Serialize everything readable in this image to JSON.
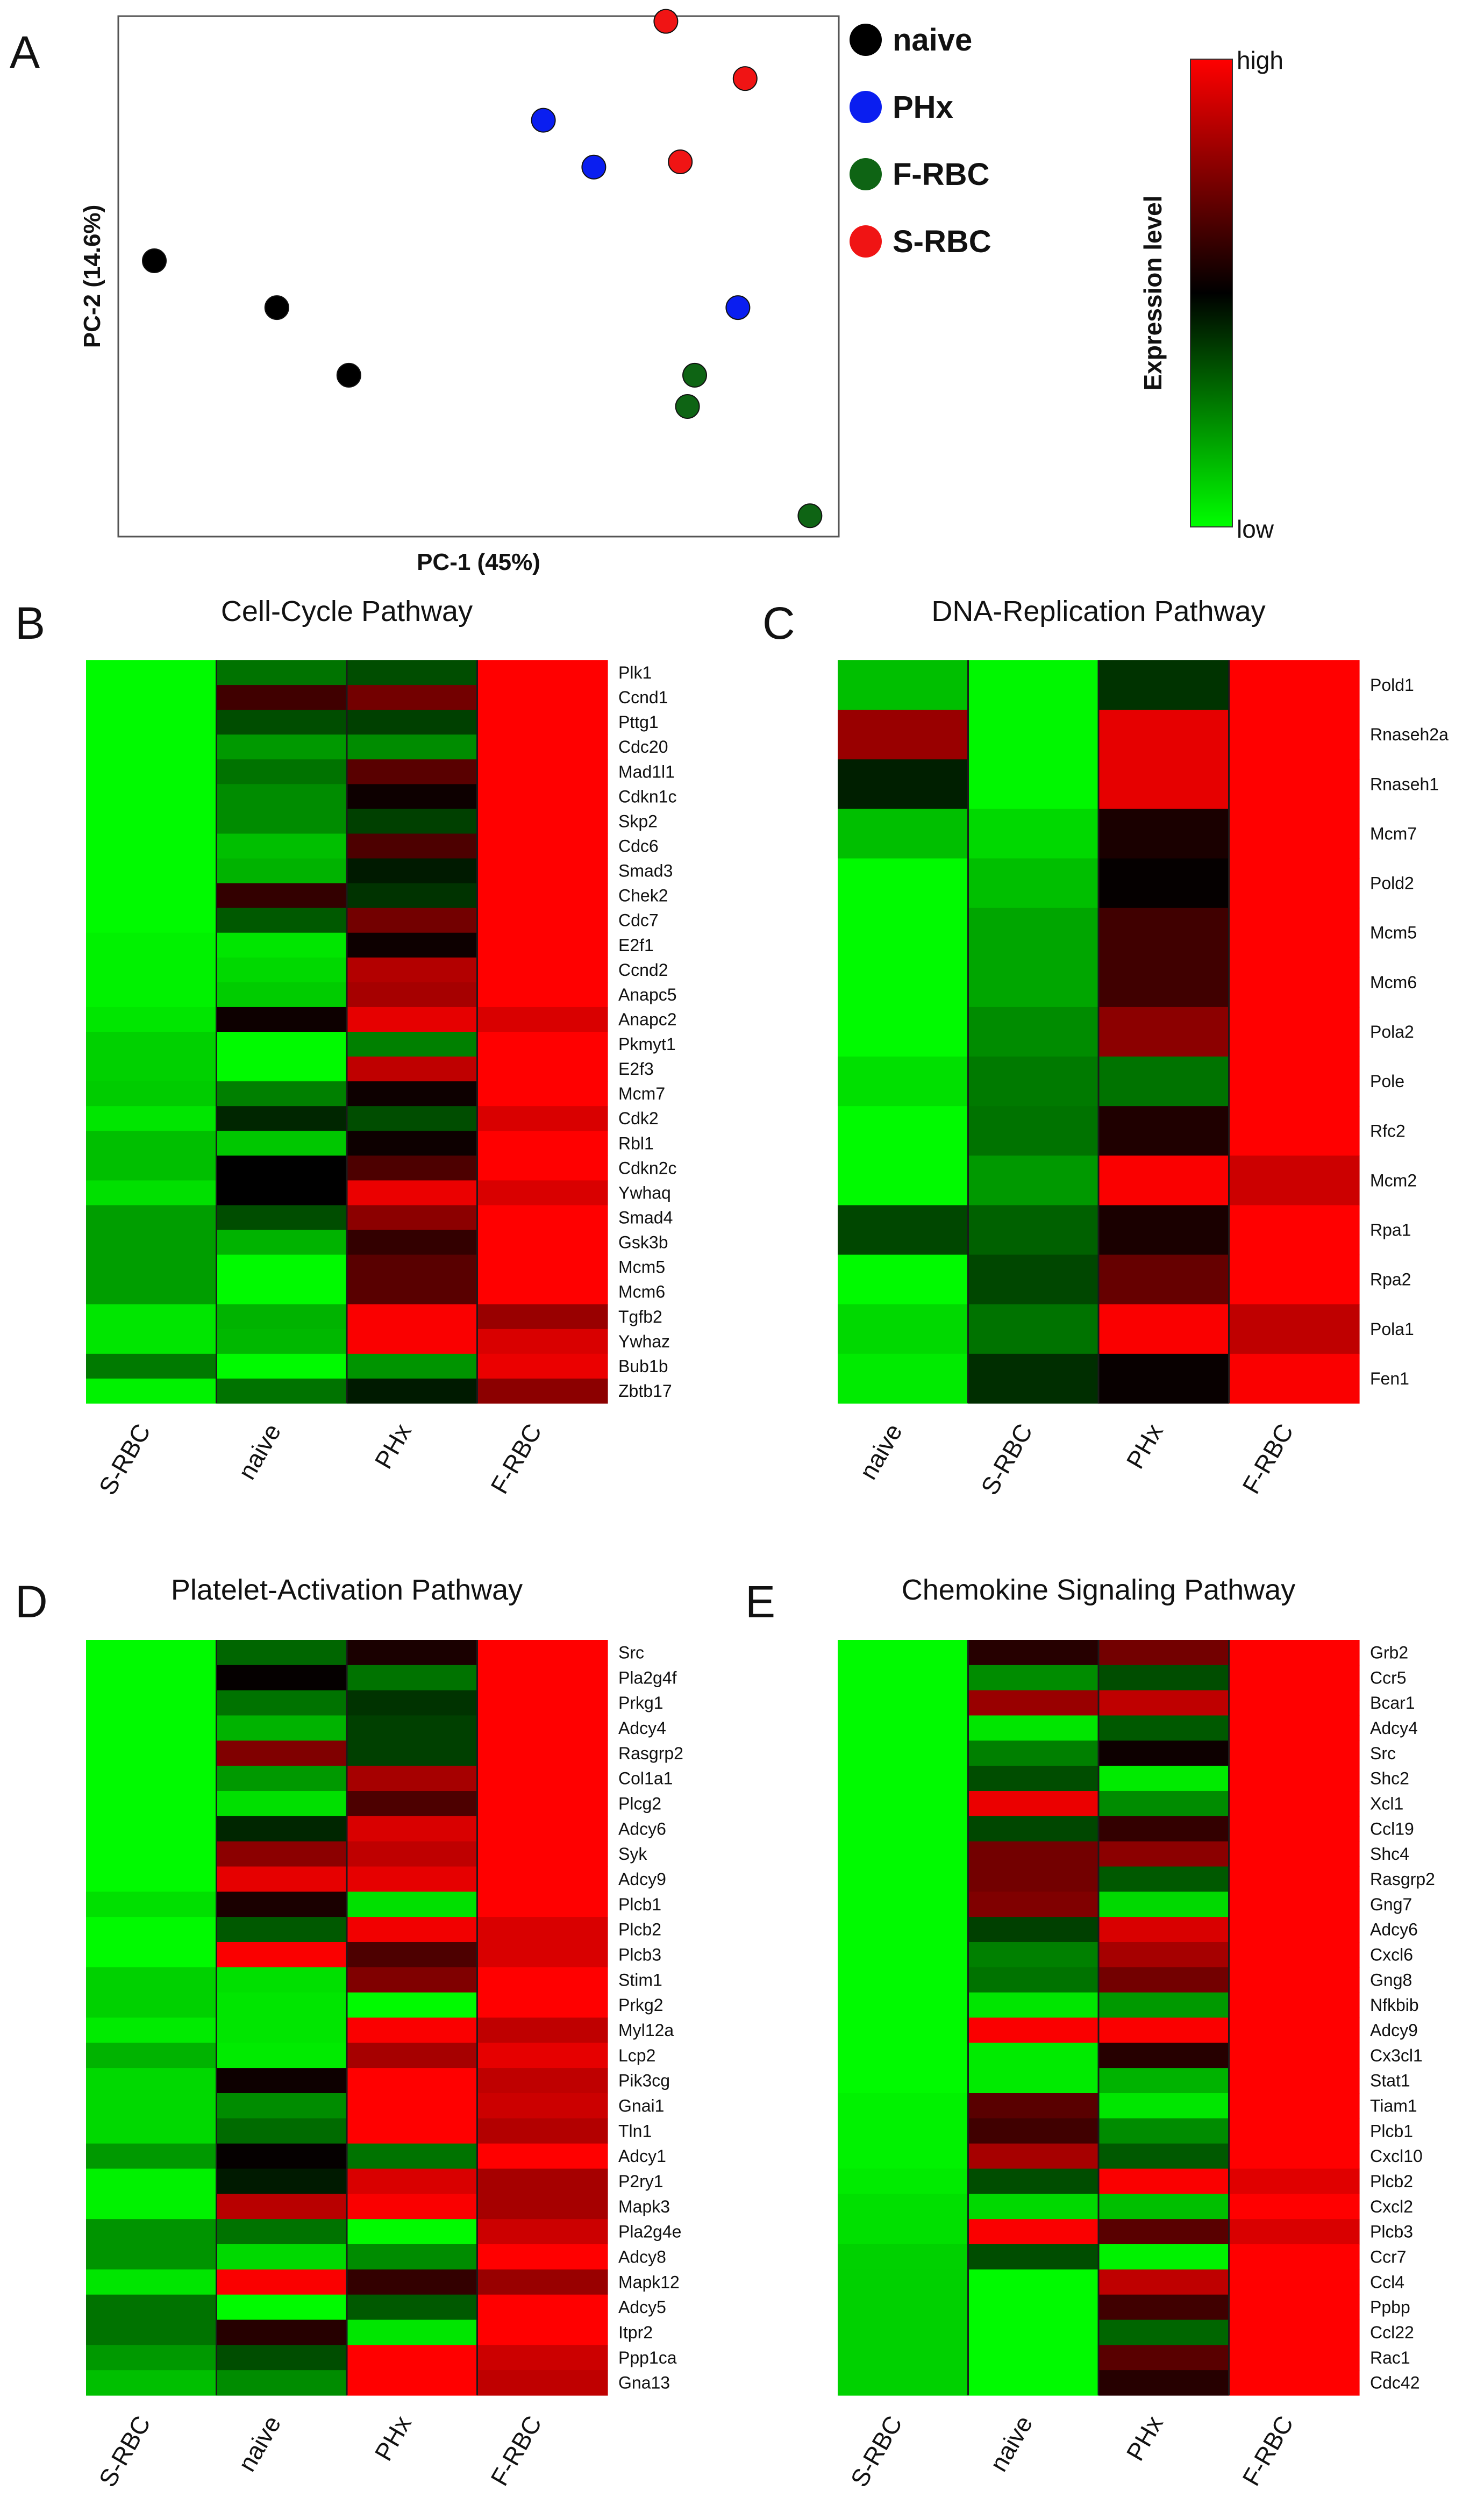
{
  "figure": {
    "pca": {
      "letter": "A",
      "xlabel": "PC-1 (45%)",
      "ylabel": "PC-2 (14.6%)",
      "legend": [
        {
          "label": "naive",
          "color": "#000000"
        },
        {
          "label": "PHx",
          "color": "#0a1ef0"
        },
        {
          "label": "F-RBC",
          "color": "#0e6414"
        },
        {
          "label": "S-RBC",
          "color": "#f01414"
        }
      ]
    },
    "colorbar": {
      "title": "Expression  level",
      "high_label": "high",
      "low_label": "low",
      "high_color": "#ff0000",
      "mid_color": "#000000",
      "low_color": "#00ff00"
    }
  },
  "chart_data": [
    {
      "type": "scatter",
      "panel": "A",
      "xlabel": "PC-1 (45%)",
      "ylabel": "PC-2 (14.6%)",
      "xlim": [
        0,
        100
      ],
      "ylim": [
        0,
        100
      ],
      "points": [
        {
          "group": "naive",
          "x": 5,
          "y": 53
        },
        {
          "group": "naive",
          "x": 22,
          "y": 44
        },
        {
          "group": "naive",
          "x": 32,
          "y": 31
        },
        {
          "group": "PHx",
          "x": 59,
          "y": 80
        },
        {
          "group": "PHx",
          "x": 66,
          "y": 71
        },
        {
          "group": "PHx",
          "x": 86,
          "y": 44
        },
        {
          "group": "F-RBC",
          "x": 80,
          "y": 31
        },
        {
          "group": "F-RBC",
          "x": 79,
          "y": 25
        },
        {
          "group": "F-RBC",
          "x": 96,
          "y": 4
        },
        {
          "group": "S-RBC",
          "x": 76,
          "y": 99
        },
        {
          "group": "S-RBC",
          "x": 87,
          "y": 88
        },
        {
          "group": "S-RBC",
          "x": 78,
          "y": 72
        }
      ]
    },
    {
      "type": "heatmap",
      "panel": "B",
      "title": "Cell-Cycle Pathway",
      "columns": [
        "S-RBC",
        "naive",
        "PHx",
        "F-RBC"
      ],
      "genes": [
        "Plk1",
        "Ccnd1",
        "Pttg1",
        "Cdc20",
        "Mad1l1",
        "Cdkn1c",
        "Skp2",
        "Cdc6",
        "Smad3",
        "Chek2",
        "Cdc7",
        "E2f1",
        "Ccnd2",
        "Anapc5",
        "Anapc2",
        "Pkmyt1",
        "E2f3",
        "Mcm7",
        "Cdk2",
        "Rbl1",
        "Cdkn2c",
        "Ywhaq",
        "Smad4",
        "Gsk3b",
        "Mcm5",
        "Mcm6",
        "Tgfb2",
        "Ywhaz",
        "Bub1b",
        "Zbtb17"
      ],
      "values": [
        [
          -0.98,
          -0.45,
          -0.3,
          1.0
        ],
        [
          -0.98,
          0.25,
          0.45,
          1.0
        ],
        [
          -0.98,
          -0.3,
          -0.25,
          1.0
        ],
        [
          -0.98,
          -0.6,
          -0.55,
          1.0
        ],
        [
          -0.98,
          -0.45,
          0.35,
          1.0
        ],
        [
          -0.98,
          -0.55,
          0.05,
          1.0
        ],
        [
          -0.98,
          -0.55,
          -0.25,
          1.0
        ],
        [
          -0.98,
          -0.75,
          0.3,
          1.0
        ],
        [
          -0.98,
          -0.7,
          -0.1,
          1.0
        ],
        [
          -0.98,
          0.2,
          -0.2,
          1.0
        ],
        [
          -0.98,
          -0.35,
          0.45,
          1.0
        ],
        [
          -0.95,
          -0.9,
          0.05,
          1.0
        ],
        [
          -0.95,
          -0.85,
          0.7,
          1.0
        ],
        [
          -0.95,
          -0.8,
          0.65,
          1.0
        ],
        [
          -0.9,
          0.05,
          0.9,
          0.85
        ],
        [
          -0.82,
          -0.98,
          -0.5,
          1.0
        ],
        [
          -0.82,
          -0.98,
          0.75,
          1.0
        ],
        [
          -0.8,
          -0.5,
          0.05,
          1.0
        ],
        [
          -0.9,
          -0.15,
          -0.3,
          0.85
        ],
        [
          -0.75,
          -0.78,
          0.05,
          1.0
        ],
        [
          -0.75,
          0.0,
          0.3,
          1.0
        ],
        [
          -0.88,
          0.0,
          0.92,
          0.85
        ],
        [
          -0.62,
          -0.3,
          0.55,
          1.0
        ],
        [
          -0.62,
          -0.7,
          0.2,
          1.0
        ],
        [
          -0.62,
          -0.98,
          0.35,
          1.0
        ],
        [
          -0.62,
          -0.98,
          0.35,
          1.0
        ],
        [
          -0.9,
          -0.7,
          0.98,
          0.6
        ],
        [
          -0.9,
          -0.72,
          0.98,
          0.85
        ],
        [
          -0.48,
          -0.98,
          -0.58,
          0.92
        ],
        [
          -0.95,
          -0.45,
          -0.1,
          0.55
        ]
      ]
    },
    {
      "type": "heatmap",
      "panel": "C",
      "title": "DNA-Replication Pathway",
      "columns": [
        "naive",
        "S-RBC",
        "PHx",
        "F-RBC"
      ],
      "genes": [
        "Pold1",
        "Rnaseh2a",
        "Rnaseh1",
        "Mcm7",
        "Pold2",
        "Mcm5",
        "Mcm6",
        "Pola2",
        "Pole",
        "Rfc2",
        "Mcm2",
        "Rpa1",
        "Rpa2",
        "Pola1",
        "Fen1"
      ],
      "values": [
        [
          -0.75,
          -0.97,
          -0.2,
          1.0
        ],
        [
          0.6,
          -0.97,
          0.9,
          1.0
        ],
        [
          -0.12,
          -0.97,
          0.9,
          1.0
        ],
        [
          -0.75,
          -0.85,
          0.1,
          1.0
        ],
        [
          -0.98,
          -0.75,
          0.02,
          1.0
        ],
        [
          -0.98,
          -0.65,
          0.25,
          1.0
        ],
        [
          -0.98,
          -0.65,
          0.25,
          1.0
        ],
        [
          -0.98,
          -0.55,
          0.55,
          1.0
        ],
        [
          -0.88,
          -0.48,
          -0.45,
          1.0
        ],
        [
          -0.98,
          -0.45,
          0.12,
          1.0
        ],
        [
          -0.98,
          -0.6,
          0.98,
          0.8
        ],
        [
          -0.28,
          -0.38,
          0.1,
          1.0
        ],
        [
          -0.98,
          -0.28,
          0.4,
          1.0
        ],
        [
          -0.85,
          -0.45,
          0.98,
          0.75
        ],
        [
          -0.92,
          -0.18,
          0.03,
          0.98
        ]
      ]
    },
    {
      "type": "heatmap",
      "panel": "D",
      "title": "Platelet-Activation Pathway",
      "columns": [
        "S-RBC",
        "naive",
        "PHx",
        "F-RBC"
      ],
      "genes": [
        "Src",
        "Pla2g4f",
        "Prkg1",
        "Adcy4",
        "Rasgrp2",
        "Col1a1",
        "Plcg2",
        "Adcy6",
        "Syk",
        "Adcy9",
        "Plcb1",
        "Plcb2",
        "Plcb3",
        "Stim1",
        "Prkg2",
        "Myl12a",
        "Lcp2",
        "Pik3cg",
        "Gnai1",
        "Tln1",
        "Adcy1",
        "P2ry1",
        "Mapk3",
        "Pla2g4e",
        "Adcy8",
        "Mapk12",
        "Adcy5",
        "Itpr2",
        "Ppp1ca",
        "Gna13"
      ],
      "values": [
        [
          -0.98,
          -0.4,
          0.1,
          1.0
        ],
        [
          -0.98,
          0.02,
          -0.45,
          1.0
        ],
        [
          -0.98,
          -0.45,
          -0.2,
          1.0
        ],
        [
          -0.98,
          -0.7,
          -0.25,
          1.0
        ],
        [
          -0.98,
          0.5,
          -0.25,
          1.0
        ],
        [
          -0.98,
          -0.6,
          0.65,
          1.0
        ],
        [
          -0.98,
          -0.88,
          0.3,
          1.0
        ],
        [
          -0.98,
          -0.15,
          0.85,
          1.0
        ],
        [
          -0.98,
          0.55,
          0.75,
          1.0
        ],
        [
          -0.98,
          0.9,
          0.9,
          1.0
        ],
        [
          -0.88,
          0.1,
          -0.88,
          1.0
        ],
        [
          -0.98,
          -0.35,
          0.95,
          0.85
        ],
        [
          -0.98,
          0.98,
          0.3,
          0.85
        ],
        [
          -0.82,
          -0.88,
          0.5,
          1.0
        ],
        [
          -0.82,
          -0.9,
          -0.98,
          1.0
        ],
        [
          -0.92,
          -0.9,
          0.98,
          0.75
        ],
        [
          -0.7,
          -0.92,
          0.65,
          0.9
        ],
        [
          -0.85,
          0.05,
          1.0,
          0.75
        ],
        [
          -0.85,
          -0.55,
          1.0,
          0.8
        ],
        [
          -0.85,
          -0.42,
          1.0,
          0.7
        ],
        [
          -0.6,
          0.02,
          -0.45,
          1.0
        ],
        [
          -0.95,
          -0.1,
          0.85,
          0.65
        ],
        [
          -0.95,
          0.72,
          0.98,
          0.65
        ],
        [
          -0.58,
          -0.45,
          -0.98,
          0.8
        ],
        [
          -0.58,
          -0.85,
          -0.55,
          1.0
        ],
        [
          -0.9,
          0.98,
          0.2,
          0.6
        ],
        [
          -0.45,
          -0.98,
          -0.35,
          1.0
        ],
        [
          -0.45,
          0.15,
          -0.9,
          1.0
        ],
        [
          -0.6,
          -0.3,
          1.0,
          0.8
        ],
        [
          -0.75,
          -0.55,
          1.0,
          0.75
        ]
      ]
    },
    {
      "type": "heatmap",
      "panel": "E",
      "title": "Chemokine Signaling Pathway",
      "columns": [
        "S-RBC",
        "naive",
        "PHx",
        "F-RBC"
      ],
      "genes": [
        "Grb2",
        "Ccr5",
        "Bcar1",
        "Adcy4",
        "Src",
        "Shc2",
        "Xcl1",
        "Ccl19",
        "Shc4",
        "Rasgrp2",
        "Gng7",
        "Adcy6",
        "Cxcl6",
        "Gng8",
        "Nfkbib",
        "Adcy9",
        "Cx3cl1",
        "Stat1",
        "Tiam1",
        "Plcb1",
        "Cxcl10",
        "Plcb2",
        "Cxcl2",
        "Plcb3",
        "Ccr7",
        "Ccl4",
        "Ppbp",
        "Ccl22",
        "Rac1",
        "Cdc42"
      ],
      "values": [
        [
          -0.98,
          0.15,
          0.45,
          1.0
        ],
        [
          -0.98,
          -0.55,
          -0.3,
          1.0
        ],
        [
          -0.98,
          0.6,
          0.75,
          1.0
        ],
        [
          -0.98,
          -0.9,
          -0.35,
          1.0
        ],
        [
          -0.98,
          -0.5,
          0.05,
          1.0
        ],
        [
          -0.98,
          -0.3,
          -0.92,
          1.0
        ],
        [
          -0.98,
          0.92,
          -0.55,
          1.0
        ],
        [
          -0.98,
          -0.28,
          0.2,
          1.0
        ],
        [
          -0.98,
          0.45,
          0.55,
          1.0
        ],
        [
          -0.98,
          0.45,
          -0.35,
          1.0
        ],
        [
          -0.98,
          0.5,
          -0.85,
          1.0
        ],
        [
          -0.98,
          -0.25,
          0.85,
          1.0
        ],
        [
          -0.98,
          -0.5,
          0.65,
          1.0
        ],
        [
          -0.98,
          -0.45,
          0.45,
          1.0
        ],
        [
          -0.98,
          -0.9,
          -0.6,
          1.0
        ],
        [
          -0.98,
          0.98,
          0.98,
          1.0
        ],
        [
          -0.98,
          -0.92,
          0.15,
          1.0
        ],
        [
          -0.98,
          -0.92,
          -0.7,
          1.0
        ],
        [
          -0.95,
          0.35,
          -0.9,
          1.0
        ],
        [
          -0.95,
          0.25,
          -0.55,
          1.0
        ],
        [
          -0.95,
          0.65,
          -0.35,
          1.0
        ],
        [
          -0.92,
          -0.3,
          0.98,
          0.88
        ],
        [
          -0.88,
          -0.85,
          -0.75,
          1.0
        ],
        [
          -0.88,
          0.98,
          0.35,
          0.85
        ],
        [
          -0.82,
          -0.3,
          -0.95,
          1.0
        ],
        [
          -0.82,
          -0.98,
          0.75,
          1.0
        ],
        [
          -0.82,
          -0.98,
          0.25,
          1.0
        ],
        [
          -0.82,
          -0.98,
          -0.4,
          1.0
        ],
        [
          -0.82,
          -0.98,
          0.35,
          1.0
        ],
        [
          -0.82,
          -0.98,
          0.15,
          1.0
        ]
      ]
    }
  ]
}
